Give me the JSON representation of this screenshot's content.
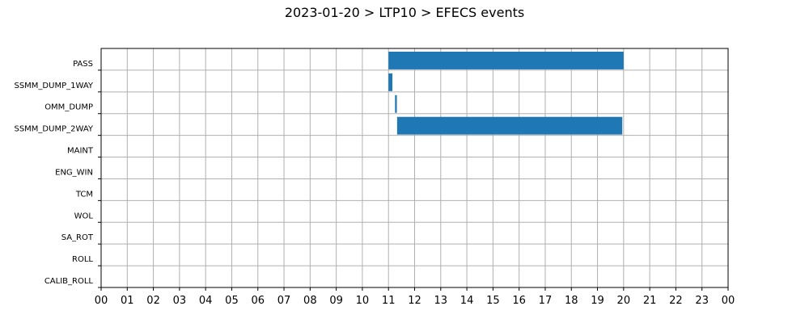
{
  "chart_data": {
    "type": "bar",
    "orientation": "horizontal-timeline",
    "title": "2023-01-20 > LTP10 > EFECS events",
    "xlabel": "",
    "ylabel": "",
    "xlim": [
      0,
      24
    ],
    "x_tick_labels": [
      "00",
      "01",
      "02",
      "03",
      "04",
      "05",
      "06",
      "07",
      "08",
      "09",
      "10",
      "11",
      "12",
      "13",
      "14",
      "15",
      "16",
      "17",
      "18",
      "19",
      "20",
      "21",
      "22",
      "23",
      "00"
    ],
    "categories": [
      "PASS",
      "SSMM_DUMP_1WAY",
      "OMM_DUMP",
      "SSMM_DUMP_2WAY",
      "MAINT",
      "ENG_WIN",
      "TCM",
      "WOL",
      "SA_ROT",
      "ROLL",
      "CALIB_ROLL"
    ],
    "grid": true,
    "bar_color": "#1f77b4",
    "events": [
      {
        "category": "PASS",
        "start": 11.0,
        "end": 20.0
      },
      {
        "category": "SSMM_DUMP_1WAY",
        "start": 11.0,
        "end": 11.15
      },
      {
        "category": "OMM_DUMP",
        "start": 11.25,
        "end": 11.32
      },
      {
        "category": "SSMM_DUMP_2WAY",
        "start": 11.33,
        "end": 19.95
      }
    ]
  }
}
